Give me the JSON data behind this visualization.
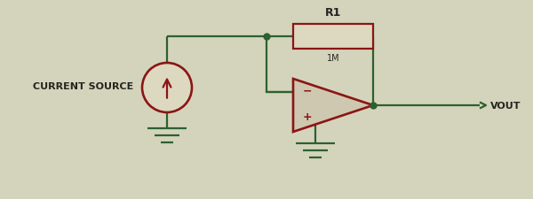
{
  "bg_color": "#d4d4bc",
  "wire_color": "#2d6030",
  "component_color": "#8b1515",
  "resistor_fill": "#ddd8c0",
  "opamp_fill": "#cec8b0",
  "label_color": "#252520",
  "wire_lw": 1.6,
  "component_lw": 1.6,
  "resistor_label": "R1",
  "resistor_sublabel": "1M",
  "vout_label": "VOUT",
  "current_source_label": "CURRENT SOURCE",
  "fig_w": 6.0,
  "fig_h": 2.26,
  "dpi": 100
}
